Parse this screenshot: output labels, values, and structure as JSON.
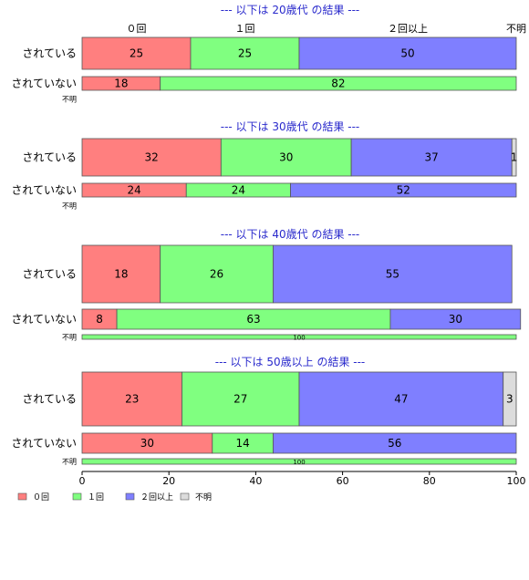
{
  "chart_data": {
    "type": "bar",
    "orientation": "horizontal",
    "stacked": true,
    "xlim": [
      0,
      100
    ],
    "x_ticks": [
      0,
      20,
      40,
      60,
      80,
      100
    ],
    "category_header": [
      "０回",
      "１回",
      "２回以上",
      "不明"
    ],
    "legend": {
      "placement": "bottom-left",
      "entries": [
        {
          "label": "０回",
          "color": "#ff7f7f"
        },
        {
          "label": "１回",
          "color": "#80ff80"
        },
        {
          "label": "２回以上",
          "color": "#7f7fff"
        },
        {
          "label": "不明",
          "color": "#dcdcdc"
        }
      ]
    },
    "panels": [
      {
        "title": "--- 以下は 20歳代 の結果 ---",
        "rows": [
          {
            "label": "されている",
            "values": [
              25,
              25,
              50,
              0
            ]
          },
          {
            "label": "されていない",
            "values": [
              18,
              82,
              0,
              0
            ]
          },
          {
            "label": "不明",
            "values": [
              0,
              0,
              0,
              0
            ],
            "center_label": ""
          }
        ]
      },
      {
        "title": "--- 以下は 30歳代 の結果 ---",
        "rows": [
          {
            "label": "されている",
            "values": [
              32,
              30,
              37,
              1
            ]
          },
          {
            "label": "されていない",
            "values": [
              24,
              24,
              52,
              0
            ]
          },
          {
            "label": "不明",
            "values": [
              0,
              0,
              0,
              0
            ],
            "center_label": ""
          }
        ]
      },
      {
        "title": "--- 以下は 40歳代 の結果 ---",
        "rows": [
          {
            "label": "されている",
            "values": [
              18,
              26,
              55,
              0
            ]
          },
          {
            "label": "されていない",
            "values": [
              8,
              63,
              30,
              0
            ]
          },
          {
            "label": "不明",
            "values": [
              0,
              100,
              0,
              0
            ],
            "center_label": "100"
          }
        ]
      },
      {
        "title": "--- 以下は 50歳以上 の結果 ---",
        "rows": [
          {
            "label": "されている",
            "values": [
              23,
              27,
              47,
              3
            ]
          },
          {
            "label": "されていない",
            "values": [
              30,
              14,
              56,
              0
            ]
          },
          {
            "label": "不明",
            "values": [
              0,
              100,
              0,
              0
            ],
            "center_label": "100"
          }
        ]
      }
    ]
  }
}
